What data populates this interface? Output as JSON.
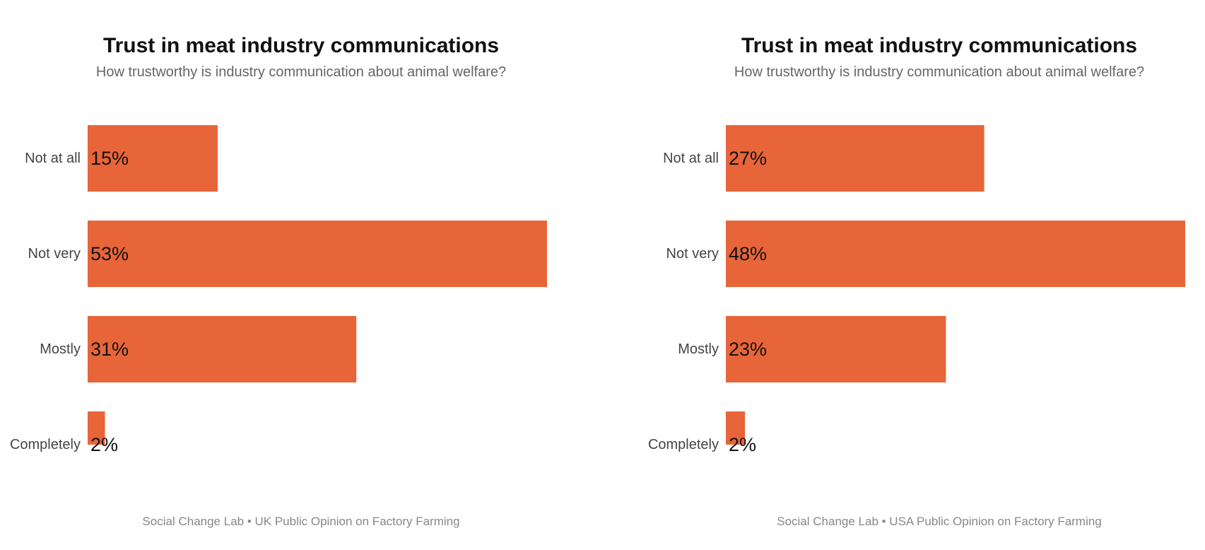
{
  "colors": {
    "bar": "#E76539",
    "cat_label": "#444444",
    "value_label": "#111111"
  },
  "panels": [
    {
      "title": "Trust in meat industry communications",
      "subtitle": "How trustworthy is industry communication about animal welfare?",
      "caption": "Social Change Lab • UK Public Opinion on Factory Farming"
    },
    {
      "title": "Trust in meat industry communications",
      "subtitle": "How trustworthy is industry communication about animal welfare?",
      "caption": "Social Change Lab • USA Public Opinion on Factory Farming"
    }
  ],
  "chart_data": [
    {
      "type": "bar",
      "orientation": "horizontal",
      "title": "Trust in meat industry communications",
      "subtitle": "How trustworthy is industry communication about animal welfare?",
      "categories": [
        "Not at all",
        "Not very",
        "Mostly",
        "Completely"
      ],
      "values": [
        15,
        53,
        31,
        2
      ],
      "value_labels": [
        "15%",
        "53%",
        "31%",
        "2%"
      ],
      "unit": "%",
      "xlim": [
        0,
        53
      ],
      "grid": false,
      "legend": "none"
    },
    {
      "type": "bar",
      "orientation": "horizontal",
      "title": "Trust in meat industry communications",
      "subtitle": "How trustworthy is industry communication about animal welfare?",
      "categories": [
        "Not at all",
        "Not very",
        "Mostly",
        "Completely"
      ],
      "values": [
        27,
        48,
        23,
        2
      ],
      "value_labels": [
        "27%",
        "48%",
        "23%",
        "2%"
      ],
      "unit": "%",
      "xlim": [
        0,
        48
      ],
      "grid": false,
      "legend": "none"
    }
  ]
}
